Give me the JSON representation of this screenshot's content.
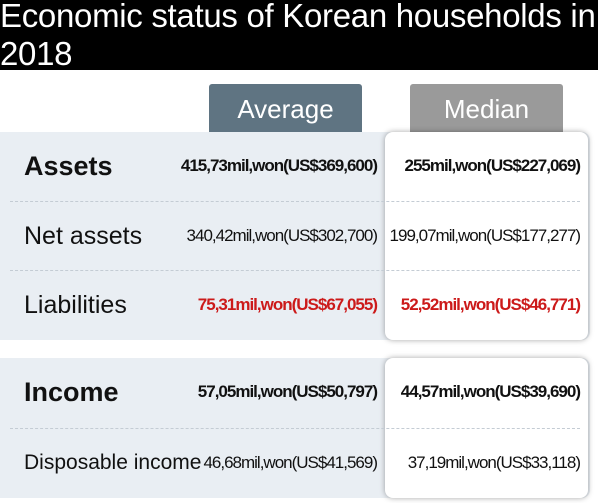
{
  "title": "Economic status of Korean households in 2018",
  "chart_data": {
    "type": "table",
    "columns": [
      "Average",
      "Median"
    ],
    "groups": [
      {
        "rows": [
          {
            "label": "Assets",
            "average": "415,73mil,won(US$369,600)",
            "median": "255mil,won(US$227,069)",
            "style": "bold"
          },
          {
            "label": "Net assets",
            "average": "340,42mil,won(US$302,700)",
            "median": "199,07mil,won(US$177,277)",
            "style": "normal"
          },
          {
            "label": "Liabilities",
            "average": "75,31mil,won(US$67,055)",
            "median": "52,52mil,won(US$46,771)",
            "style": "red"
          }
        ]
      },
      {
        "rows": [
          {
            "label": "Income",
            "average": "57,05mil,won(US$50,797)",
            "median": "44,57mil,won(US$39,690)",
            "style": "bold"
          },
          {
            "label": "Disposable income",
            "average": "46,68mil,won(US$41,569)",
            "median": "37,19mil,won(US$33,118)",
            "style": "small"
          }
        ]
      }
    ]
  },
  "colors": {
    "title_bg": "#000000",
    "average_header": "#5f7482",
    "median_header": "#9a9a9a",
    "panel_bg": "#e9eef3",
    "liabilities_text": "#cc1a1a"
  }
}
